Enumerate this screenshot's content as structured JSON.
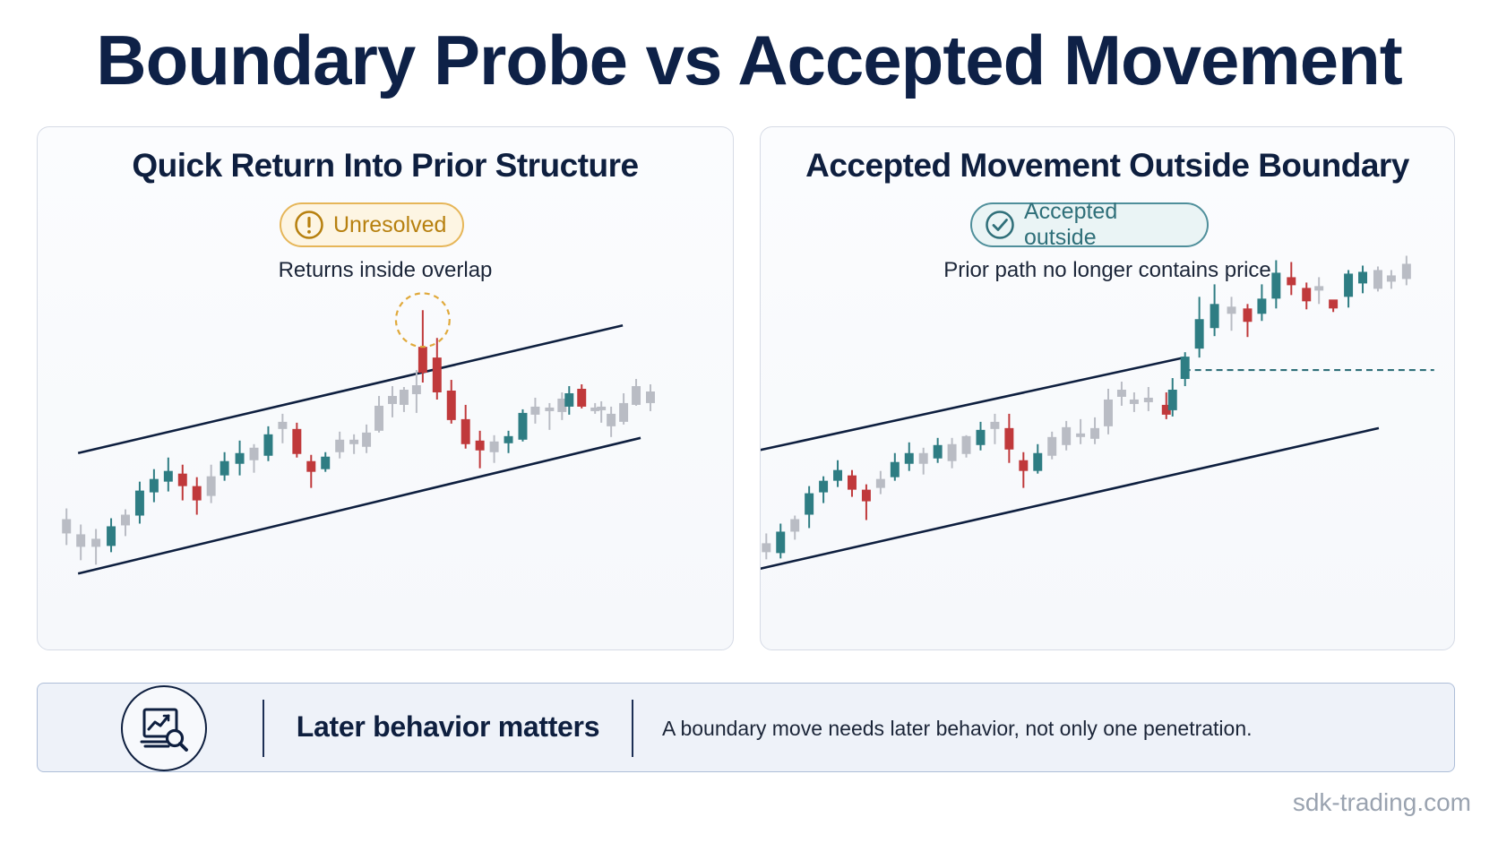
{
  "title": "Boundary Probe vs Accepted Movement",
  "colors": {
    "bull": "#2e7d83",
    "bear": "#c0393b",
    "neutral": "#b9bcc4",
    "boundary": "#0e1f3f",
    "warn": "#e0a93b",
    "accepted": "#2f6f79"
  },
  "panels": [
    {
      "title": "Quick Return Into Prior Structure",
      "badge_label": "Unresolved",
      "badge_icon": "exclamation-circle-icon",
      "subtitle": "Returns inside overlap"
    },
    {
      "title": "Accepted Movement Outside Boundary",
      "badge_label": "Accepted outside",
      "badge_icon": "check-circle-icon",
      "subtitle": "Prior path no longer contains price"
    }
  ],
  "banner": {
    "icon": "chart-magnifier-icon",
    "heading": "Later behavior matters",
    "text": "A boundary move needs later behavior, not only one penetration."
  },
  "watermark": "sdk-trading.com"
}
